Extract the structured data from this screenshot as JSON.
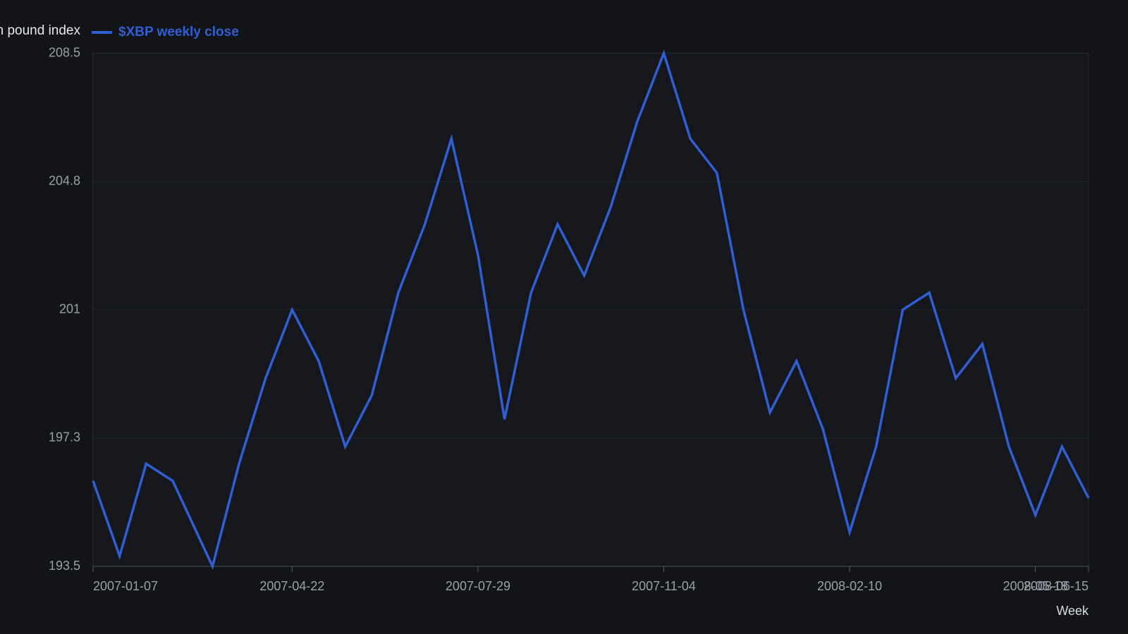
{
  "chart_data": {
    "type": "line",
    "legend_title": "n pound index",
    "x_label": "Week",
    "x": [
      "2007-01-07",
      "2007-01-21",
      "2007-02-04",
      "2007-02-18",
      "2007-03-11",
      "2007-03-25",
      "2007-04-08",
      "2007-04-22",
      "2007-05-06",
      "2007-05-20",
      "2007-06-03",
      "2007-06-17",
      "2007-07-01",
      "2007-07-15",
      "2007-07-29",
      "2007-08-12",
      "2007-08-26",
      "2007-09-09",
      "2007-09-23",
      "2007-10-07",
      "2007-10-21",
      "2007-11-04",
      "2007-11-18",
      "2007-12-02",
      "2007-12-16",
      "2007-12-30",
      "2008-01-13",
      "2008-01-27",
      "2008-02-10",
      "2008-02-24",
      "2008-03-09",
      "2008-03-23",
      "2008-04-06",
      "2008-04-20",
      "2008-05-04",
      "2008-05-18",
      "2008-06-01",
      "2008-06-15"
    ],
    "series": [
      {
        "name": "$XBP weekly close",
        "color": "#2f5fd3",
        "values": [
          196.0,
          193.8,
          196.5,
          196.0,
          193.5,
          196.5,
          199.0,
          201.0,
          199.5,
          197.0,
          198.5,
          201.5,
          203.5,
          206.0,
          202.6,
          197.8,
          201.5,
          203.5,
          202.0,
          204.0,
          206.5,
          208.5,
          206.0,
          205.0,
          201.0,
          198.0,
          199.5,
          197.5,
          194.5,
          197.0,
          201.0,
          201.5,
          199.0,
          200.0,
          197.0,
          195.0,
          197.0,
          195.5
        ]
      }
    ],
    "xlim": [
      "2007-01-07",
      "2008-06-15"
    ],
    "xticks": [
      "2007-01-07",
      "2007-04-22",
      "2007-07-29",
      "2007-11-04",
      "2008-02-10",
      "2008-05-18",
      "2008-06-15"
    ],
    "ylim": [
      193.5,
      208.5
    ],
    "yticks": [
      193.5,
      {
        "value": 197.25,
        "label": "197.3"
      },
      201,
      {
        "value": 204.75,
        "label": "204.8"
      },
      208.5
    ],
    "grid": true
  }
}
